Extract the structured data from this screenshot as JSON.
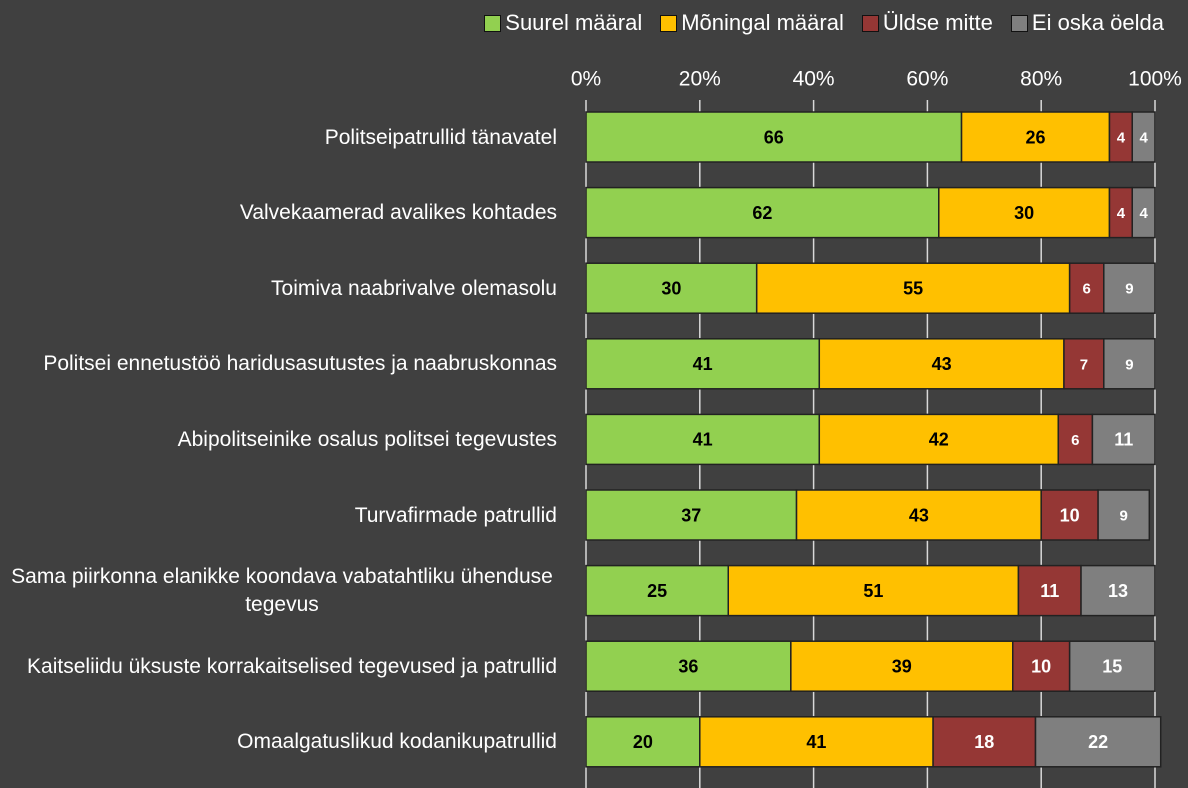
{
  "chart_data": {
    "type": "stacked_bar_horizontal",
    "categories": [
      "Politseipatrullid tänavatel",
      "Valvekaamerad avalikes kohtades",
      "Toimiva naabrivalve olemasolu",
      "Politsei ennetustöö haridusasutustes ja naabruskonnas",
      "Abipolitseinike osalus politsei tegevustes",
      "Turvafirmade patrullid",
      "Sama piirkonna elanikke koondava vabatahtliku ühenduse tegevus",
      "Kaitseliidu üksuste korrakaitselised tegevused ja  patrullid",
      "Omaalgatuslikud kodanikupatrullid"
    ],
    "series": [
      {
        "name": "Suurel määral",
        "color": "#92d050",
        "label_color": "#000000",
        "values": [
          66,
          62,
          30,
          41,
          41,
          37,
          25,
          36,
          20
        ]
      },
      {
        "name": "Mõningal määral",
        "color": "#ffc000",
        "label_color": "#000000",
        "values": [
          26,
          30,
          55,
          43,
          42,
          43,
          51,
          39,
          41
        ]
      },
      {
        "name": "Üldse mitte",
        "color": "#953735",
        "label_color": "#ffffff",
        "values": [
          4,
          4,
          6,
          7,
          6,
          10,
          11,
          10,
          18
        ]
      },
      {
        "name": "Ei oska öelda",
        "color": "#7f7f7f",
        "label_color": "#ffffff",
        "values": [
          4,
          4,
          9,
          9,
          11,
          9,
          13,
          15,
          22
        ]
      }
    ],
    "xlim": [
      0,
      100
    ],
    "xticks": [
      {
        "value": 0,
        "label": "0%"
      },
      {
        "value": 20,
        "label": "20%"
      },
      {
        "value": 40,
        "label": "40%"
      },
      {
        "value": 60,
        "label": "60%"
      },
      {
        "value": 80,
        "label": "80%"
      },
      {
        "value": 100,
        "label": "100%"
      }
    ],
    "grid": true,
    "legend": "top-right"
  }
}
